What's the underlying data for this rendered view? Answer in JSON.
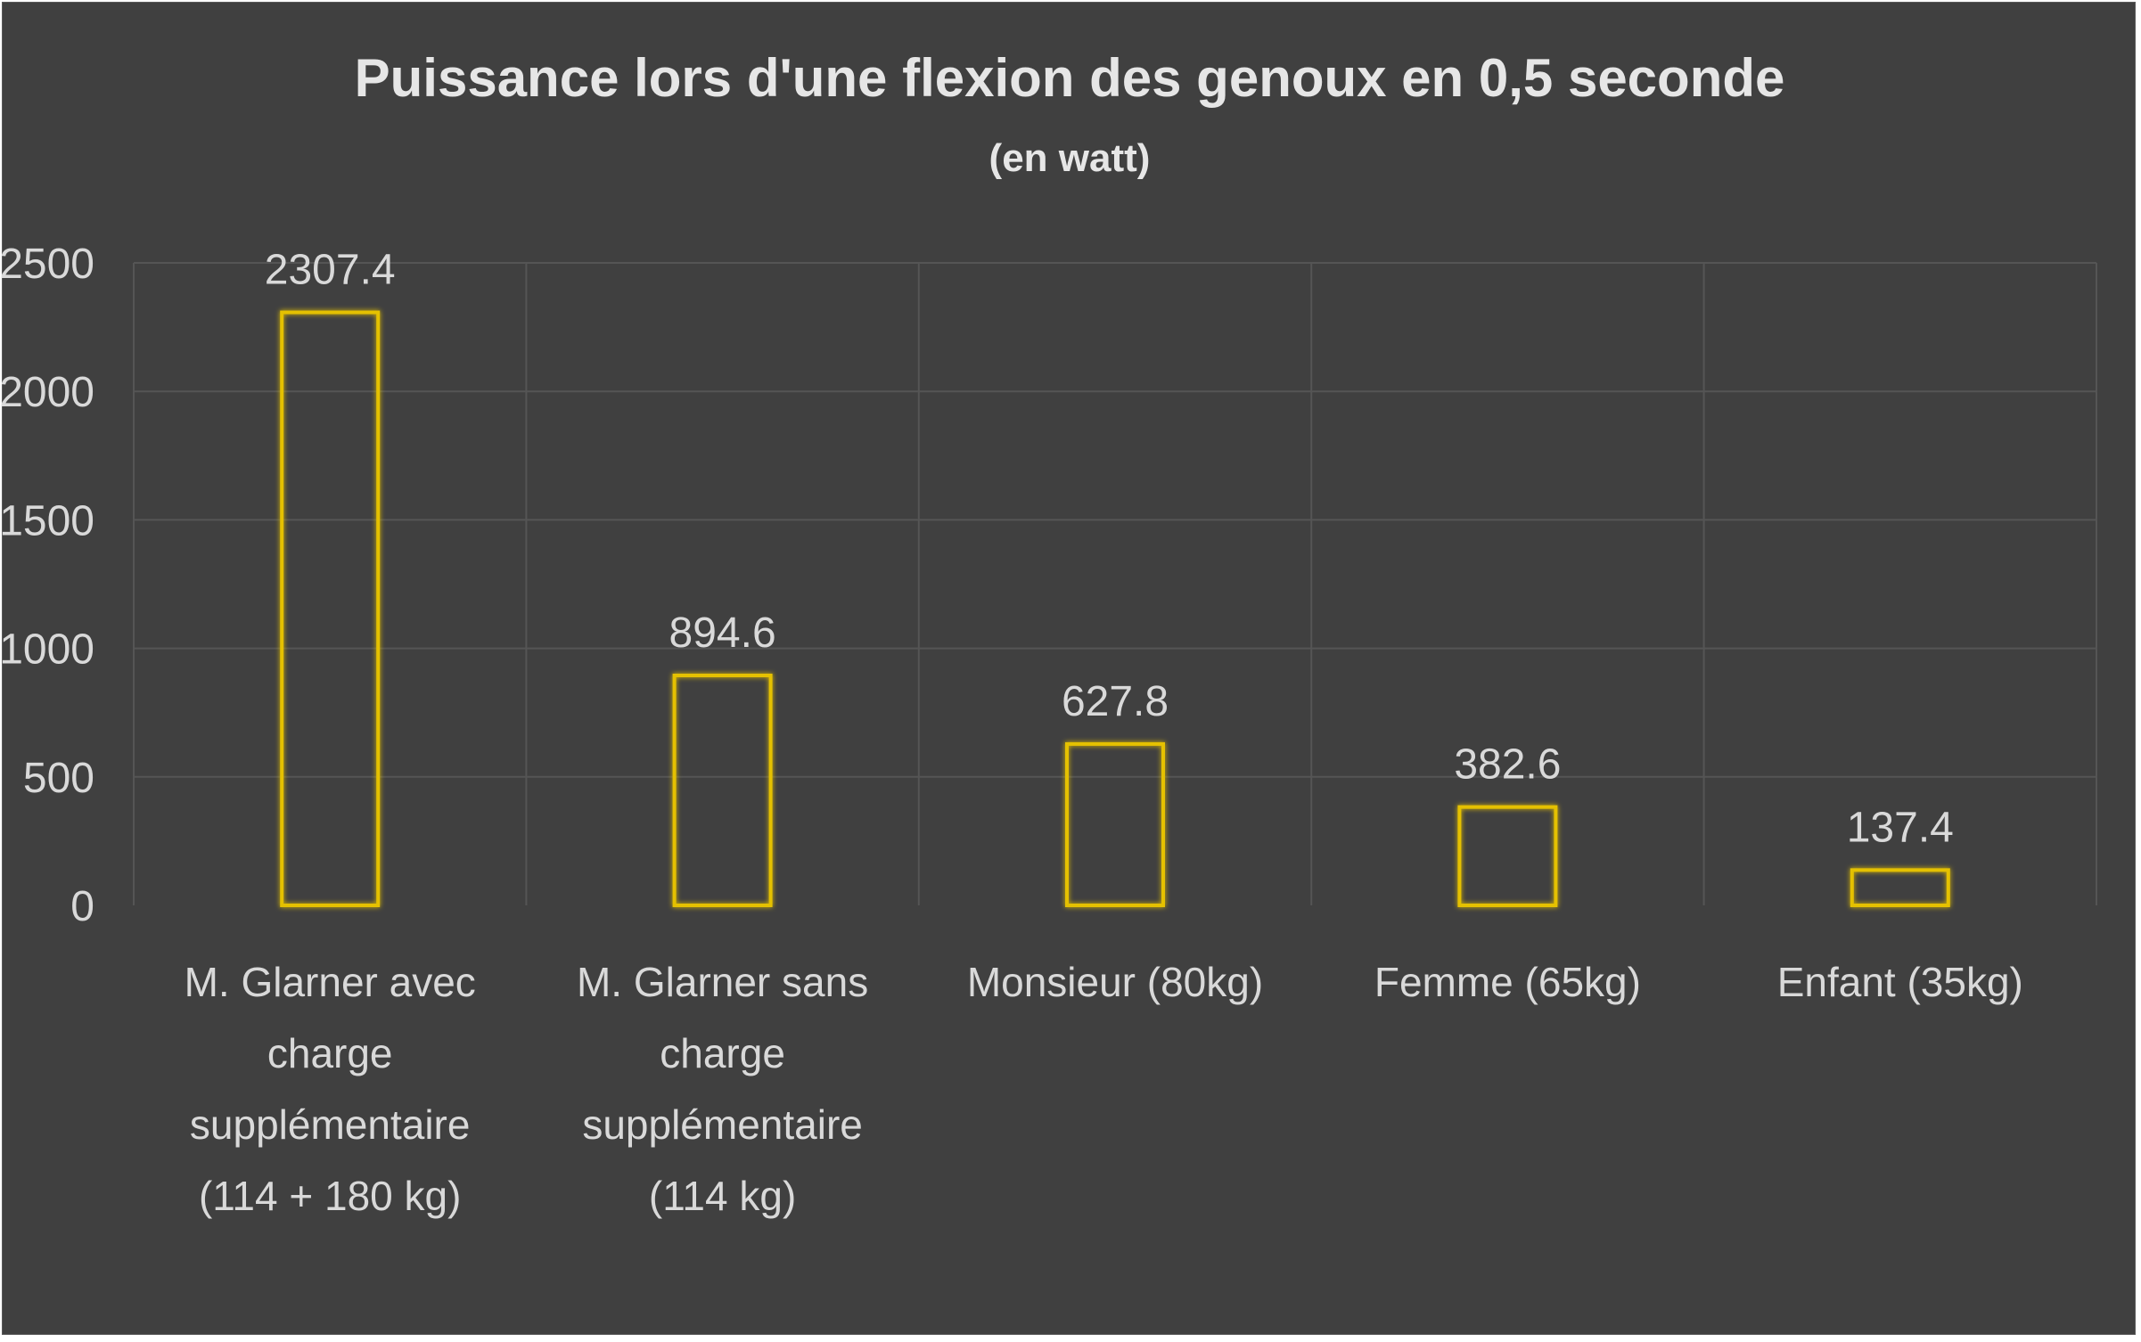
{
  "chart_data": {
    "type": "bar",
    "title": "Puissance lors d'une flexion des genoux en 0,5 seconde",
    "subtitle": "(en watt)",
    "categories": [
      [
        "M. Glarner avec",
        "charge",
        "supplémentaire",
        "(114 + 180 kg)"
      ],
      [
        "M. Glarner sans",
        "charge",
        "supplémentaire",
        "(114 kg)"
      ],
      [
        "Monsieur (80kg)"
      ],
      [
        "Femme (65kg)"
      ],
      [
        "Enfant (35kg)"
      ]
    ],
    "values": [
      2307.4,
      894.6,
      627.8,
      382.6,
      137.4
    ],
    "data_labels": [
      "2307.4",
      "894.6",
      "627.8",
      "382.6",
      "137.4"
    ],
    "yticks": [
      "0",
      "500",
      "1000",
      "1500",
      "2000",
      "2500"
    ],
    "ylim": [
      0,
      2500
    ],
    "grid": true,
    "legend": "none",
    "colors": {
      "background": "#404040",
      "bar_outline": "#e5c100",
      "text": "#d9d9d9",
      "grid": "#555555"
    }
  }
}
